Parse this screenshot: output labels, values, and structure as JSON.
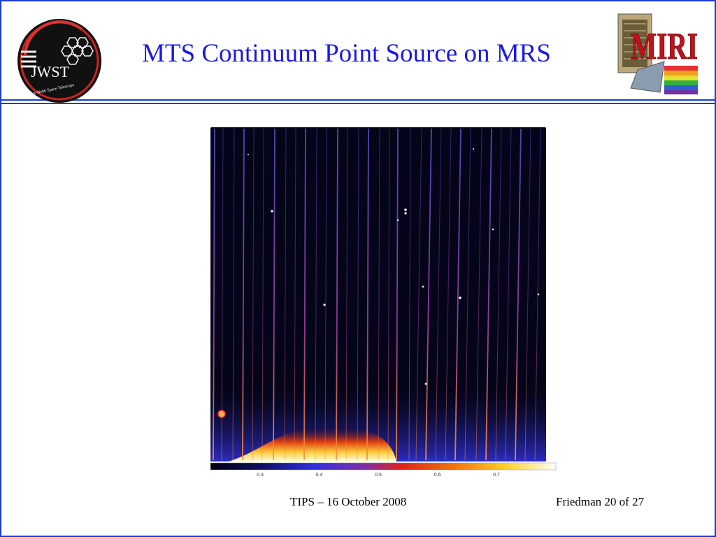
{
  "slide": {
    "title": "MTS Continuum Point Source on MRS",
    "footer_center": "TIPS – 16 October 2008",
    "footer_right": "Friedman 20 of 27"
  },
  "logos": {
    "jwst": {
      "name": "jwst-logo",
      "text": "JWST",
      "subtext": "James Webb Space Telescope"
    },
    "miri": {
      "name": "miri-logo",
      "text": "MIRI"
    }
  },
  "figure": {
    "colorbar_ticks": [
      "0.3",
      "0.4",
      "0.5",
      "0.6",
      "0.7"
    ]
  },
  "colors": {
    "frame": "#1a3bd6",
    "title": "#1a1ae6",
    "image_background": "#05051a"
  }
}
